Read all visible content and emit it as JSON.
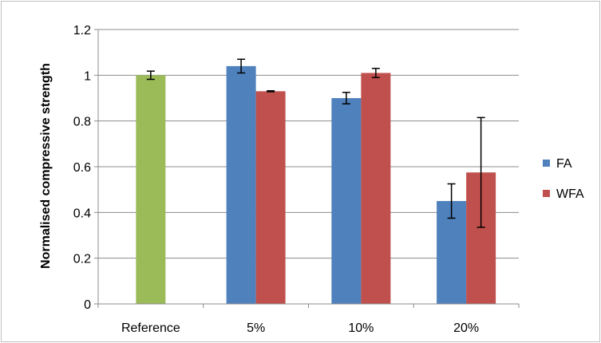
{
  "chart_data": {
    "type": "bar",
    "ylabel": "Normalised compressive strength",
    "xlabel": "",
    "ylim": [
      0,
      1.2
    ],
    "ytick_step": 0.2,
    "yticks": [
      "0",
      "0.2",
      "0.4",
      "0.6",
      "0.8",
      "1",
      "1.2"
    ],
    "categories": [
      "Reference",
      "5%",
      "10%",
      "20%"
    ],
    "grid": true,
    "legend_position": "right",
    "reference": {
      "category": "Reference",
      "value": 1.0,
      "error": 0.018,
      "color": "#9bbb59"
    },
    "series": [
      {
        "name": "FA",
        "color": "#4f81bd",
        "values": [
          null,
          1.04,
          0.9,
          0.45
        ],
        "errors": [
          null,
          0.03,
          0.025,
          0.075
        ]
      },
      {
        "name": "WFA",
        "color": "#c0504d",
        "values": [
          null,
          0.93,
          1.01,
          0.575
        ],
        "errors": [
          null,
          0.002,
          0.02,
          0.24
        ]
      }
    ]
  }
}
